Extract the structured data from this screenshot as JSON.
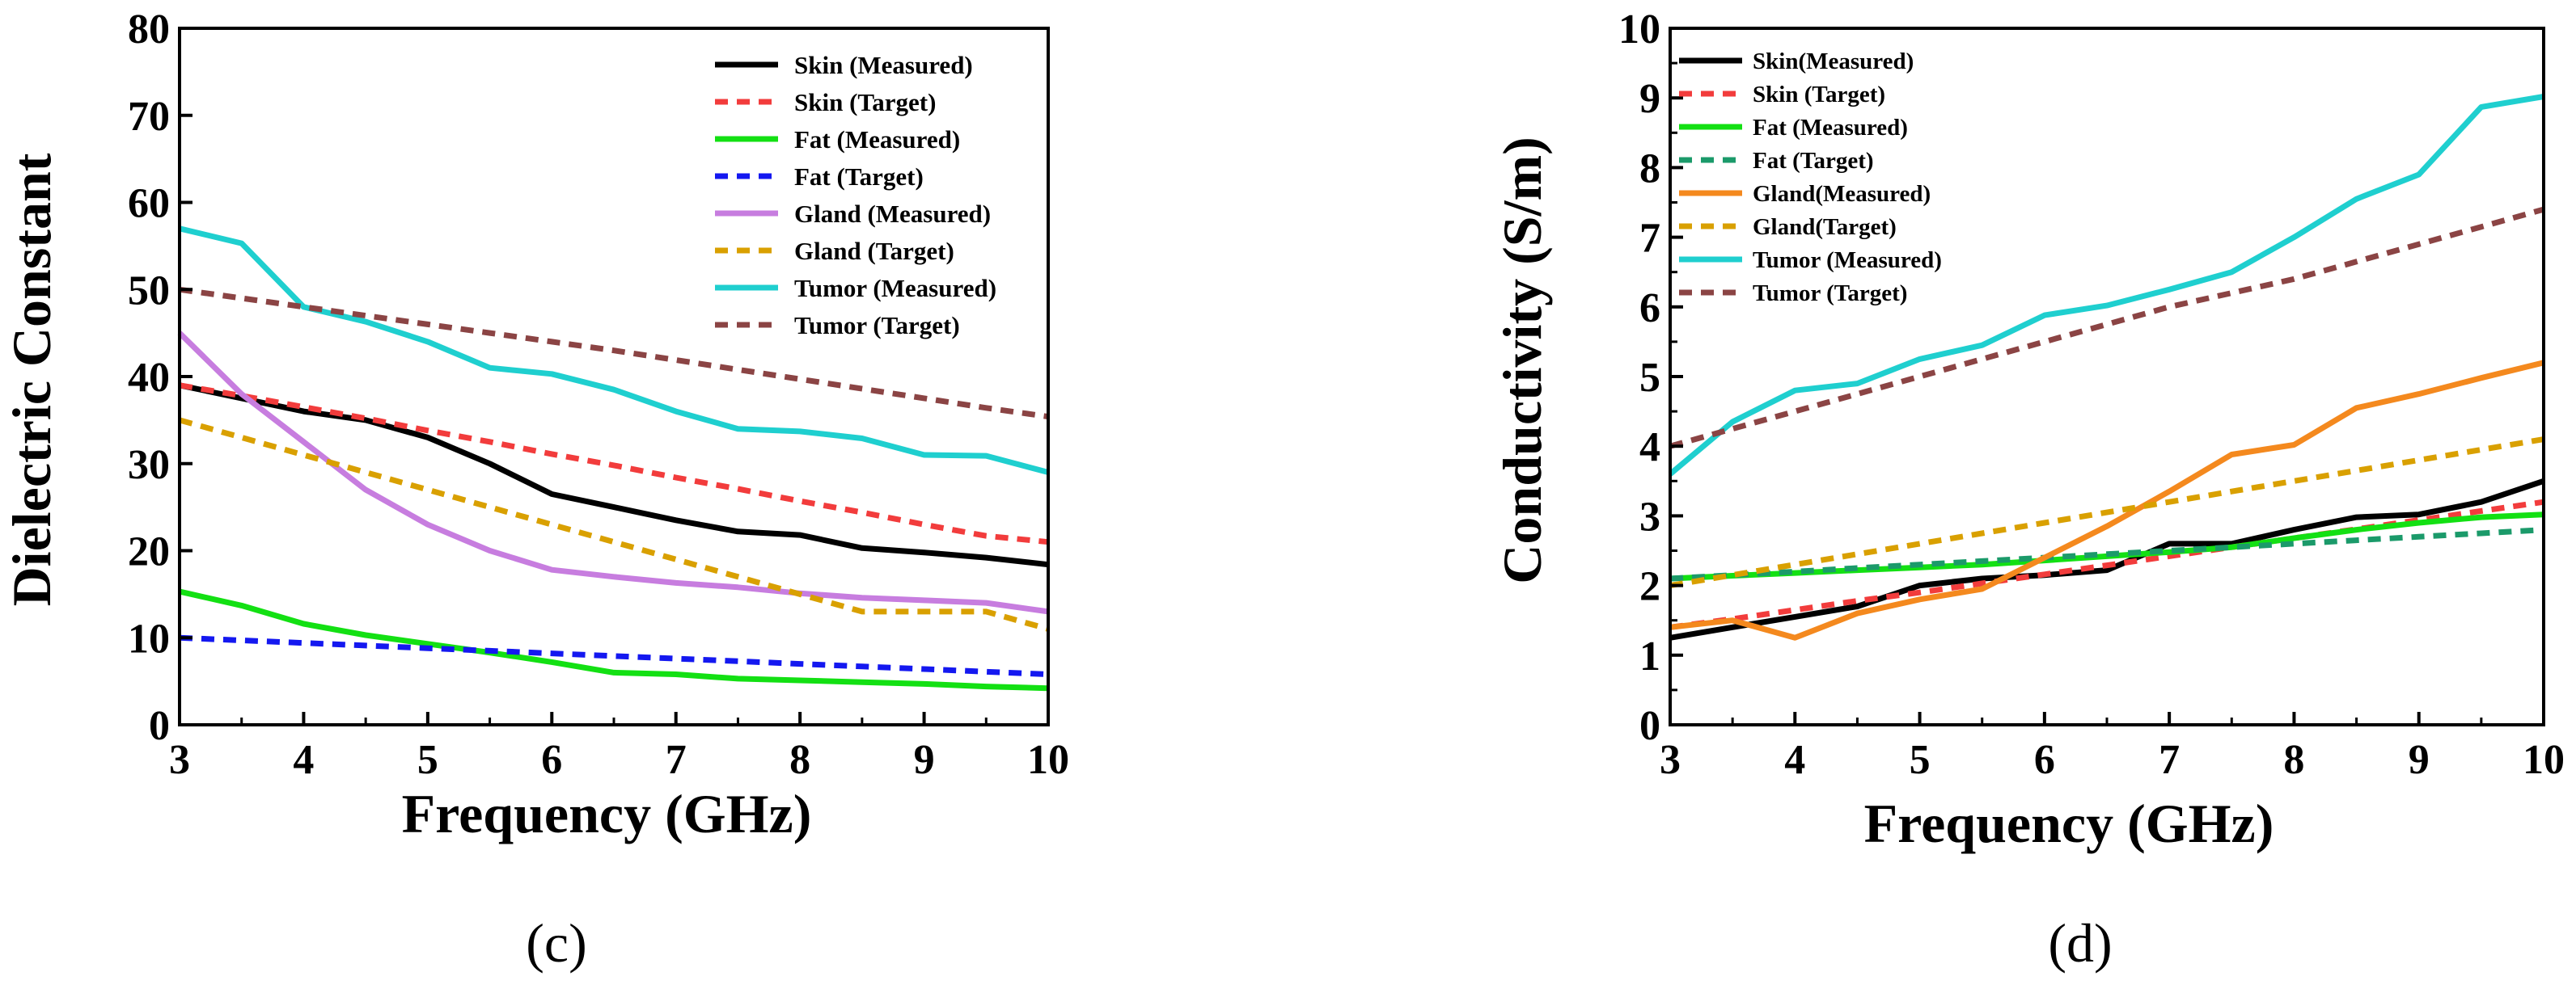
{
  "figure": {
    "panels": [
      {
        "id": "c",
        "label": "(c)"
      },
      {
        "id": "d",
        "label": "(d)"
      }
    ]
  },
  "chart_data": [
    {
      "type": "line",
      "panel": "(c)",
      "title": "",
      "xlabel": "Frequency (GHz)",
      "ylabel": "Dielectric Constant",
      "xlim": [
        3,
        10
      ],
      "ylim": [
        0,
        80
      ],
      "xticks": [
        3,
        4,
        5,
        6,
        7,
        8,
        9,
        10
      ],
      "yticks": [
        0,
        10,
        20,
        30,
        40,
        50,
        60,
        70,
        80
      ],
      "legend_position": "top-right",
      "x": [
        3,
        3.5,
        4,
        4.5,
        5,
        5.5,
        6,
        6.5,
        7,
        7.5,
        8,
        8.5,
        9,
        9.5,
        10
      ],
      "series": [
        {
          "name": "Skin (Measured)",
          "color": "#000000",
          "dash": false,
          "values": [
            39,
            37.5,
            36,
            35,
            33,
            30,
            26.5,
            25,
            23.5,
            22.2,
            21.8,
            20.3,
            19.8,
            19.2,
            18.4
          ]
        },
        {
          "name": "Skin (Target)",
          "color": "#f23c3c",
          "dash": true,
          "values": [
            39,
            37.8,
            36.5,
            35.2,
            33.8,
            32.5,
            31.1,
            29.8,
            28.4,
            27.1,
            25.7,
            24.4,
            23,
            21.7,
            21
          ]
        },
        {
          "name": "Fat (Measured)",
          "color": "#13e013",
          "dash": false,
          "values": [
            15.3,
            13.7,
            11.6,
            10.3,
            9.3,
            8.3,
            7.2,
            6,
            5.8,
            5.3,
            5.1,
            4.9,
            4.7,
            4.4,
            4.2
          ]
        },
        {
          "name": "Fat (Target)",
          "color": "#1418f0",
          "dash": true,
          "values": [
            10,
            9.7,
            9.4,
            9.1,
            8.8,
            8.5,
            8.2,
            7.9,
            7.6,
            7.3,
            7,
            6.7,
            6.4,
            6.1,
            5.8
          ]
        },
        {
          "name": "Gland (Measured)",
          "color": "#c77ddf",
          "dash": false,
          "values": [
            45,
            38,
            32.5,
            27,
            23,
            20,
            17.8,
            17,
            16.3,
            15.8,
            15.1,
            14.6,
            14.3,
            14,
            13
          ]
        },
        {
          "name": "Gland (Target)",
          "color": "#d9a000",
          "dash": true,
          "values": [
            35,
            33,
            31,
            29,
            27,
            25,
            23,
            21,
            19,
            17,
            15,
            13,
            13,
            13,
            11
          ]
        },
        {
          "name": "Tumor (Measured)",
          "color": "#1fcfcf",
          "dash": false,
          "values": [
            57,
            55.3,
            48,
            46.3,
            44,
            41,
            40.3,
            38.5,
            36,
            34,
            33.7,
            32.9,
            31,
            30.9,
            29
          ]
        },
        {
          "name": "Tumor (Target)",
          "color": "#8b4444",
          "dash": true,
          "values": [
            50,
            49,
            48,
            47,
            46,
            45,
            44,
            43,
            41.9,
            40.8,
            39.7,
            38.6,
            37.5,
            36.4,
            35.4
          ]
        }
      ]
    },
    {
      "type": "line",
      "panel": "(d)",
      "title": "",
      "xlabel": "Frequency (GHz)",
      "ylabel": "Conductivity (S/m)",
      "xlim": [
        3,
        10
      ],
      "ylim": [
        0,
        10
      ],
      "xticks": [
        3,
        4,
        5,
        6,
        7,
        8,
        9,
        10
      ],
      "yticks": [
        0,
        1,
        2,
        3,
        4,
        5,
        6,
        7,
        8,
        9,
        10
      ],
      "legend_position": "top-left",
      "x": [
        3,
        3.5,
        4,
        4.5,
        5,
        5.5,
        6,
        6.5,
        7,
        7.5,
        8,
        8.5,
        9,
        9.5,
        10
      ],
      "series": [
        {
          "name": "Skin(Measured)",
          "color": "#000000",
          "dash": false,
          "values": [
            1.25,
            1.4,
            1.55,
            1.7,
            2,
            2.1,
            2.15,
            2.22,
            2.6,
            2.6,
            2.8,
            2.98,
            3.02,
            3.2,
            3.5
          ]
        },
        {
          "name": "Skin (Target)",
          "color": "#f23c3c",
          "dash": true,
          "values": [
            1.4,
            1.52,
            1.65,
            1.78,
            1.9,
            2.03,
            2.16,
            2.29,
            2.42,
            2.55,
            2.68,
            2.81,
            2.94,
            3.07,
            3.2
          ]
        },
        {
          "name": "Fat (Measured)",
          "color": "#13e013",
          "dash": false,
          "values": [
            2.1,
            2.14,
            2.18,
            2.22,
            2.26,
            2.3,
            2.36,
            2.42,
            2.48,
            2.55,
            2.68,
            2.8,
            2.9,
            2.98,
            3.02
          ]
        },
        {
          "name": "Fat (Target)",
          "color": "#1b9a6a",
          "dash": true,
          "values": [
            2.1,
            2.15,
            2.2,
            2.25,
            2.3,
            2.35,
            2.4,
            2.45,
            2.5,
            2.55,
            2.6,
            2.65,
            2.7,
            2.75,
            2.8
          ]
        },
        {
          "name": "Gland(Measured)",
          "color": "#f4891e",
          "dash": false,
          "values": [
            1.4,
            1.5,
            1.25,
            1.6,
            1.8,
            1.95,
            2.4,
            2.85,
            3.35,
            3.88,
            4.02,
            4.55,
            4.75,
            4.98,
            5.2
          ]
        },
        {
          "name": "Gland(Target)",
          "color": "#d9a000",
          "dash": true,
          "values": [
            2.0,
            2.15,
            2.3,
            2.45,
            2.6,
            2.75,
            2.9,
            3.05,
            3.2,
            3.35,
            3.5,
            3.65,
            3.8,
            3.95,
            4.1
          ]
        },
        {
          "name": "Tumor (Measured)",
          "color": "#1fcfcf",
          "dash": false,
          "values": [
            3.6,
            4.35,
            4.8,
            4.9,
            5.25,
            5.45,
            5.88,
            6.02,
            6.25,
            6.5,
            7.0,
            7.55,
            7.9,
            8.87,
            9.02
          ]
        },
        {
          "name": "Tumor (Target)",
          "color": "#8b4444",
          "dash": true,
          "values": [
            4.0,
            4.25,
            4.5,
            4.75,
            5.0,
            5.25,
            5.5,
            5.75,
            6.0,
            6.2,
            6.4,
            6.65,
            6.9,
            7.15,
            7.4
          ]
        }
      ]
    }
  ]
}
